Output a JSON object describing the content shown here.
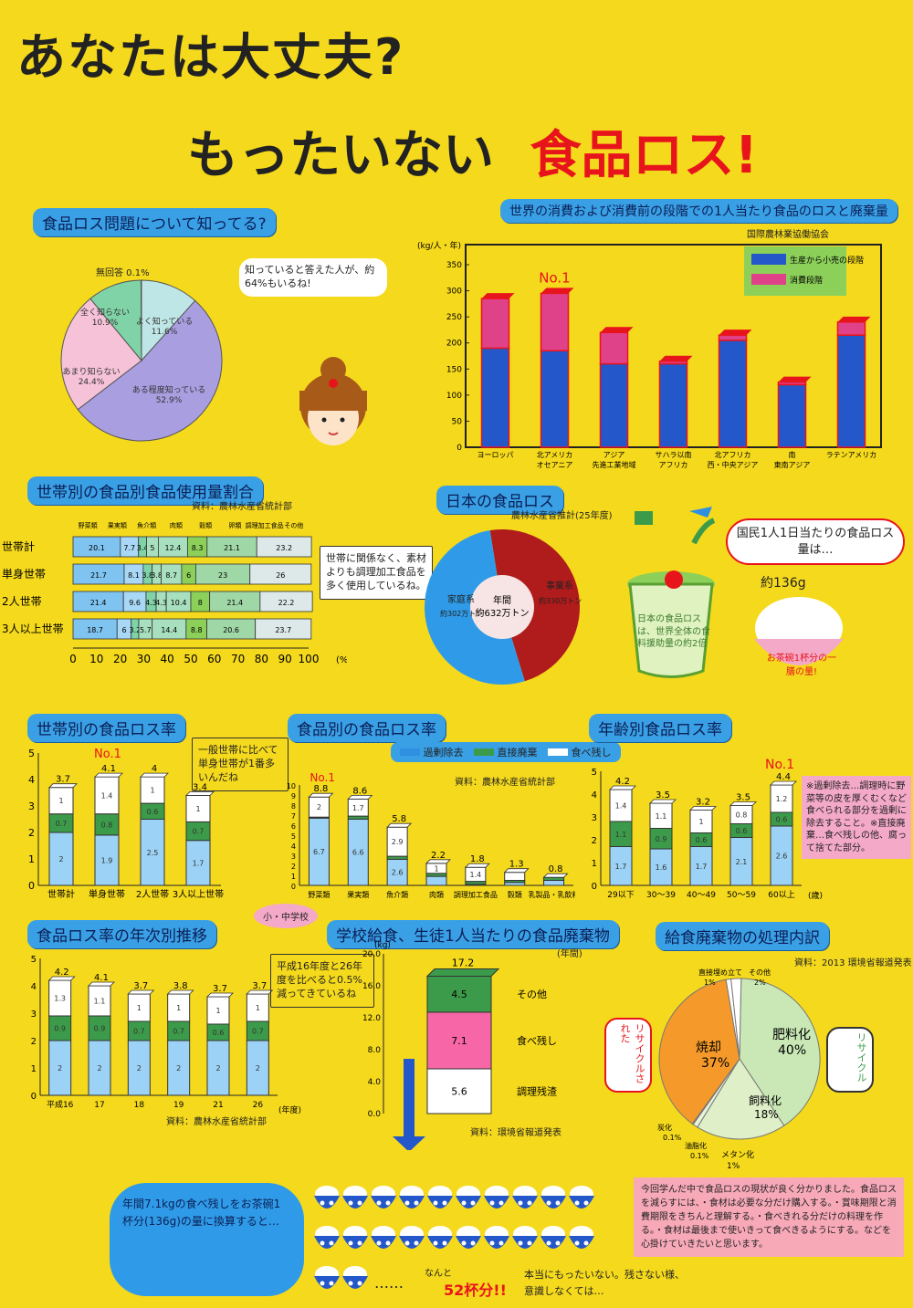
{
  "title": {
    "line1": "あなたは大丈夫?",
    "line2a": "もったいない",
    "line2b": "食品ロス!"
  },
  "sec_know": {
    "title": "食品ロス問題について知ってる?",
    "bubble": "知っていると答えた人が、約64%もいるね!",
    "no_answer": "無回答 0.1%"
  },
  "sec_world": {
    "title": "世界の消費および消費前の段階での1人当たり食品のロスと廃棄量",
    "source": "国際農林業協働協会",
    "unit": "(kg/人・年)",
    "no1": "No.1"
  },
  "sec_household": {
    "title": "世帯別の食品別食品使用量割合",
    "source": "資料：農林水産省統計部",
    "note": "世帯に関係なく、素材よりも調理加工食品を多く使用しているね。",
    "pct": "(%)"
  },
  "sec_japan": {
    "title": "日本の食品ロス",
    "source": "農林水産省推計(25年度)",
    "bubble": "国民1人1日当たりの食品ロス量は…",
    "amount": "約136g",
    "bowl": "お茶碗1杯分の一膳の量!",
    "bin": "日本の食品ロスは、世界全体の食料援助量の約2倍"
  },
  "sec_hh_loss": {
    "title": "世帯別の食品ロス率",
    "no1": "No.1",
    "note": "一般世帯に比べて単身世帯が1番多いんだね"
  },
  "sec_food_loss": {
    "title": "食品別の食品ロス率",
    "no1": "No.1",
    "source": "資料：農林水産省統計部"
  },
  "sec_age": {
    "title": "年齢別食品ロス率",
    "no1": "No.1",
    "unit": "(歳)",
    "memo": "※過剰除去…調理時に野菜等の皮を厚くむくなど食べられる部分を過剰に除去すること。※直接廃棄…食べ残しの他、腐って捨てた部分。"
  },
  "sec_trend": {
    "title": "食品ロス率の年次別推移",
    "source": "資料：農林水産省統計部",
    "note": "平成16年度と26年度を比べると0.5%減ってきているね",
    "xunit": "(年度)"
  },
  "sec_school": {
    "title": "学校給食、生徒1人当たりの食品廃棄物",
    "tag": "小・中学校",
    "unit": "(年間)",
    "source": "資料：環境省報道発表"
  },
  "sec_proc": {
    "title": "給食廃棄物の処理内訳",
    "source": "資料：2013 環境省報道発表",
    "recycle_l": "リサイクルされた",
    "recycle_r": "リサイクル"
  },
  "bottom": {
    "convert": "年間7.1kgの食べ残しをお茶碗1杯分(136g)の量に換算すると…",
    "dots": "……",
    "nanto": "なんと",
    "cups": "52杯分!!",
    "honto": "本当にもったいない。残さない様、意識しなくては…",
    "conclusion": "今回学んだ中で食品ロスの現状が良く分かりました。食品ロスを減らすには、・食材は必要な分だけ購入する。・賞味期限と消費期限をきちんと理解する。・食べきれる分だけの料理を作る。・食材は最後まで使いきって食べきるようにする。などを心掛けていきたいと思います。"
  },
  "chart_data": [
    {
      "type": "pie",
      "title": "食品ロス問題について知ってる?",
      "slices": [
        {
          "label": "よく知っている",
          "value": 11.6
        },
        {
          "label": "ある程度知っている",
          "value": 52.9
        },
        {
          "label": "あまり知らない",
          "value": 24.4
        },
        {
          "label": "全く知らない",
          "value": 10.9
        },
        {
          "label": "無回答",
          "value": 0.1
        }
      ],
      "display": [
        "よく知っている 11.6%",
        "ある程度知っている 52.9%",
        "あまり知らない 24.4%",
        "全く知らない 10.9%"
      ]
    },
    {
      "type": "bar",
      "title": "世界の消費および消費前の段階での1人当たり食品のロスと廃棄量",
      "ylim": [
        0,
        350
      ],
      "yticks": [
        0,
        50,
        100,
        150,
        200,
        250,
        300,
        350
      ],
      "categories": [
        "ヨーロッパ",
        "北アメリカ・オセアニア",
        "アジア先進工業地域",
        "サハラ以南アフリカ",
        "北アフリカ西・中央アジア",
        "南・東南アジア",
        "ラテンアメリカ"
      ],
      "cat_lines": [
        [
          "ヨーロッパ",
          ""
        ],
        [
          "北アメリカ",
          "オセアニア"
        ],
        [
          "アジア",
          "先進工業地域"
        ],
        [
          "サハラ以南",
          "アフリカ"
        ],
        [
          "北アフリカ",
          "西・中央アジア"
        ],
        [
          "南",
          "東南アジア"
        ],
        [
          "ラテンアメリカ",
          ""
        ]
      ],
      "series": [
        {
          "name": "生産から小売の段階",
          "color": "#2457c9",
          "values": [
            190,
            185,
            160,
            160,
            205,
            120,
            215
          ]
        },
        {
          "name": "消費段階",
          "color": "#e0428a",
          "values": [
            95,
            110,
            60,
            5,
            10,
            5,
            25
          ]
        }
      ]
    },
    {
      "type": "bar",
      "title": "世帯別の食品別食品使用量割合",
      "orientation": "horizontal",
      "headers": [
        "野菜類",
        "果実類",
        "魚介類",
        "肉類",
        "穀類",
        "卵類",
        "調理加工食品",
        "その他"
      ],
      "rows": [
        {
          "label": "世帯計",
          "values": [
            20.1,
            7.7,
            3.4,
            5.0,
            12.4,
            8.3,
            21.1,
            23.2
          ]
        },
        {
          "label": "単身世帯",
          "values": [
            21.7,
            8.1,
            3.8,
            3.8,
            8.7,
            6.0,
            23.0,
            26.0
          ]
        },
        {
          "label": "2人世帯",
          "values": [
            21.4,
            9.6,
            4.3,
            4.3,
            10.4,
            8.0,
            21.4,
            22.2
          ]
        },
        {
          "label": "3人以上世帯",
          "values": [
            18.7,
            6.0,
            3.2,
            5.7,
            14.4,
            8.8,
            20.6,
            23.7
          ]
        }
      ],
      "xticks": [
        0,
        10,
        20,
        30,
        40,
        50,
        60,
        70,
        80,
        90,
        100
      ]
    },
    {
      "type": "pie",
      "title": "日本の食品ロス",
      "center": "年間 約632万トン",
      "slices": [
        {
          "label": "家庭系 約302万トン",
          "value": 302,
          "color": "#b01b1b"
        },
        {
          "label": "事業系 約330万トン",
          "value": 330,
          "color": "#2f9be8"
        }
      ]
    },
    {
      "type": "bar",
      "title": "世帯別の食品ロス率",
      "ylim": [
        0,
        5
      ],
      "categories": [
        "世帯計",
        "単身世帯",
        "2人世帯",
        "3人以上世帯"
      ],
      "series": [
        {
          "name": "過剰除去",
          "values": [
            2.0,
            1.9,
            2.5,
            1.7
          ]
        },
        {
          "name": "直接廃棄",
          "values": [
            0.7,
            0.8,
            0.6,
            0.7
          ]
        },
        {
          "name": "食べ残し",
          "values": [
            1.0,
            1.4,
            1.0,
            1.0
          ]
        }
      ],
      "totals": [
        3.7,
        4.1,
        4.0,
        3.4
      ]
    },
    {
      "type": "bar",
      "title": "食品別の食品ロス率",
      "ylim": [
        0,
        10
      ],
      "categories": [
        "野菜類",
        "果実類",
        "魚介類",
        "肉類",
        "調理加工食品",
        "穀類",
        "乳製品・乳飲料"
      ],
      "totals": [
        8.8,
        8.6,
        5.8,
        2.2,
        1.8,
        1.3,
        0.8
      ],
      "series": [
        {
          "name": "過剰除去",
          "values": [
            6.7,
            6.6,
            2.6,
            0.9,
            0.1,
            0.3,
            0.5
          ]
        },
        {
          "name": "直接廃棄",
          "values": [
            0.1,
            0.3,
            0.3,
            0.3,
            0.3,
            0.2,
            0.3
          ]
        },
        {
          "name": "食べ残し",
          "values": [
            2.0,
            1.7,
            2.9,
            1.0,
            1.4,
            0.8,
            0.0
          ]
        }
      ]
    },
    {
      "type": "bar",
      "title": "年齢別食品ロス率",
      "ylim": [
        0,
        5
      ],
      "categories": [
        "29以下",
        "30〜39",
        "40〜49",
        "50〜59",
        "60以上"
      ],
      "totals": [
        4.2,
        3.5,
        3.2,
        3.5,
        4.4
      ],
      "series": [
        {
          "name": "過剰除去",
          "values": [
            1.7,
            1.6,
            1.7,
            2.1,
            2.6
          ]
        },
        {
          "name": "直接廃棄",
          "values": [
            1.1,
            0.9,
            0.6,
            0.6,
            0.6
          ]
        },
        {
          "name": "食べ残し",
          "values": [
            1.4,
            1.1,
            1.0,
            0.8,
            1.2
          ]
        }
      ]
    },
    {
      "type": "bar",
      "title": "食品ロス率の年次別推移",
      "ylim": [
        0,
        5
      ],
      "categories": [
        "平成16",
        "17",
        "18",
        "19",
        "21",
        "26"
      ],
      "totals": [
        4.2,
        4.1,
        3.7,
        3.8,
        3.7,
        3.7
      ],
      "series": [
        {
          "name": "過剰除去",
          "values": [
            2.0,
            2.0,
            2.0,
            2.0,
            2.0,
            2.0
          ]
        },
        {
          "name": "直接廃棄",
          "values": [
            0.9,
            0.9,
            0.7,
            0.7,
            0.6,
            0.7
          ]
        },
        {
          "name": "食べ残し",
          "values": [
            1.3,
            1.1,
            1.0,
            1.0,
            1.0,
            1.0
          ]
        }
      ]
    },
    {
      "type": "bar",
      "title": "学校給食、生徒1人当たりの食品廃棄物",
      "ylim": [
        0,
        20
      ],
      "yticks": [
        0.0,
        4.0,
        8.0,
        12.0,
        16.0,
        20.0
      ],
      "unit": "(kg)",
      "total": 17.2,
      "series": [
        {
          "name": "調理残渣",
          "value": 5.6
        },
        {
          "name": "食べ残し",
          "value": 7.1
        },
        {
          "name": "その他",
          "value": 4.5
        }
      ]
    },
    {
      "type": "pie",
      "title": "給食廃棄物の処理内訳",
      "slices": [
        {
          "label": "肥料化",
          "value": 40,
          "display": "40%"
        },
        {
          "label": "飼料化",
          "value": 18,
          "display": "18%"
        },
        {
          "label": "メタン化",
          "value": 1,
          "display": "1%"
        },
        {
          "label": "炭化",
          "value": 0.1,
          "display": "0.1%"
        },
        {
          "label": "油脂化",
          "value": 0.1,
          "display": "0.1%"
        },
        {
          "label": "焼却",
          "value": 37,
          "display": "37%"
        },
        {
          "label": "直接埋め立て",
          "value": 1,
          "display": "1%"
        },
        {
          "label": "その他",
          "value": 2,
          "display": "2%"
        }
      ]
    }
  ],
  "legend_common": {
    "a": "過剰除去",
    "b": "直接廃棄",
    "c": "食べ残し"
  },
  "colors": {
    "bg": "#f5d91c",
    "blue": "#2f8fe0",
    "green": "#3c9b4a",
    "white": "#ffffff",
    "red": "#e8141c",
    "pink": "#f4a9c8"
  }
}
